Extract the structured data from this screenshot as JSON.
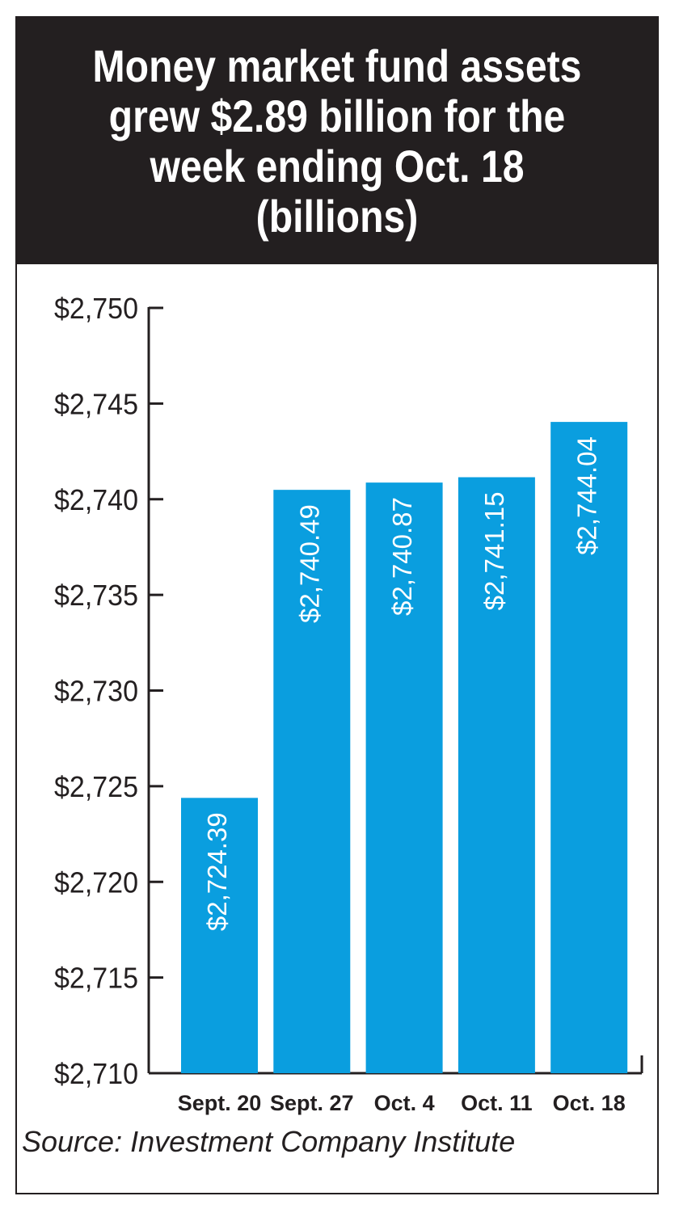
{
  "title": "Money market fund assets grew $2.89 billion for the week ending Oct. 18 (billions)",
  "source": "Source: Investment Company Institute",
  "colors": {
    "bar": "#0a9edf",
    "header_bg": "#231f20",
    "axis": "#231f20",
    "bar_label": "#ffffff"
  },
  "chart_data": {
    "type": "bar",
    "title": "Money market fund assets grew $2.89 billion for the week ending Oct. 18 (billions)",
    "categories": [
      "Sept. 20",
      "Sept. 27",
      "Oct. 4",
      "Oct. 11",
      "Oct. 18"
    ],
    "values": [
      2724.39,
      2740.49,
      2740.87,
      2741.15,
      2744.04
    ],
    "data_labels": [
      "$2,724.39",
      "$2,740.49",
      "$2,740.87",
      "$2,741.15",
      "$2,744.04"
    ],
    "ylim": [
      2710,
      2750
    ],
    "yticks": [
      2710,
      2715,
      2720,
      2725,
      2730,
      2735,
      2740,
      2745,
      2750
    ],
    "ytick_labels": [
      "$2,710",
      "$2,715",
      "$2,720",
      "$2,725",
      "$2,730",
      "$2,735",
      "$2,740",
      "$2,745",
      "$2,750"
    ],
    "xlabel": "",
    "ylabel": "",
    "grid": false,
    "legend": "none"
  }
}
